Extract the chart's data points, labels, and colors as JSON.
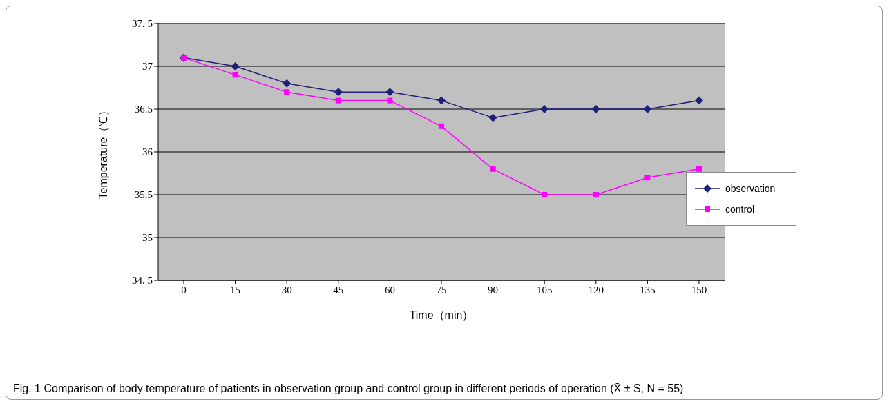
{
  "chart_data": {
    "type": "line",
    "xlabel": "Time（min）",
    "ylabel": "Temperature（℃）",
    "categories": [
      "0",
      "15",
      "30",
      "45",
      "60",
      "75",
      "90",
      "105",
      "120",
      "135",
      "150"
    ],
    "series": [
      {
        "name": "observation",
        "color": "#1f1f7a",
        "marker": "diamond",
        "values": [
          37.1,
          37.0,
          36.8,
          36.7,
          36.7,
          36.6,
          36.4,
          36.5,
          36.5,
          36.5,
          36.6
        ]
      },
      {
        "name": "control",
        "color": "#ff00ff",
        "marker": "square",
        "values": [
          37.1,
          36.9,
          36.7,
          36.6,
          36.6,
          36.3,
          35.8,
          35.5,
          35.5,
          35.7,
          35.8
        ]
      }
    ],
    "ylim": [
      34.5,
      37.5
    ],
    "yticks": [
      {
        "value": 34.5,
        "label": "34. 5"
      },
      35,
      35.5,
      36,
      36.5,
      37,
      {
        "value": 37.5,
        "label": "37. 5"
      }
    ],
    "grid": "y",
    "legend": "right",
    "line_style": "solid",
    "annotations": [
      "Fig. 1 Comparison of body temperature of patients in observation group and control group in different periods of operation (X̄ ± S, N = 55)"
    ]
  }
}
